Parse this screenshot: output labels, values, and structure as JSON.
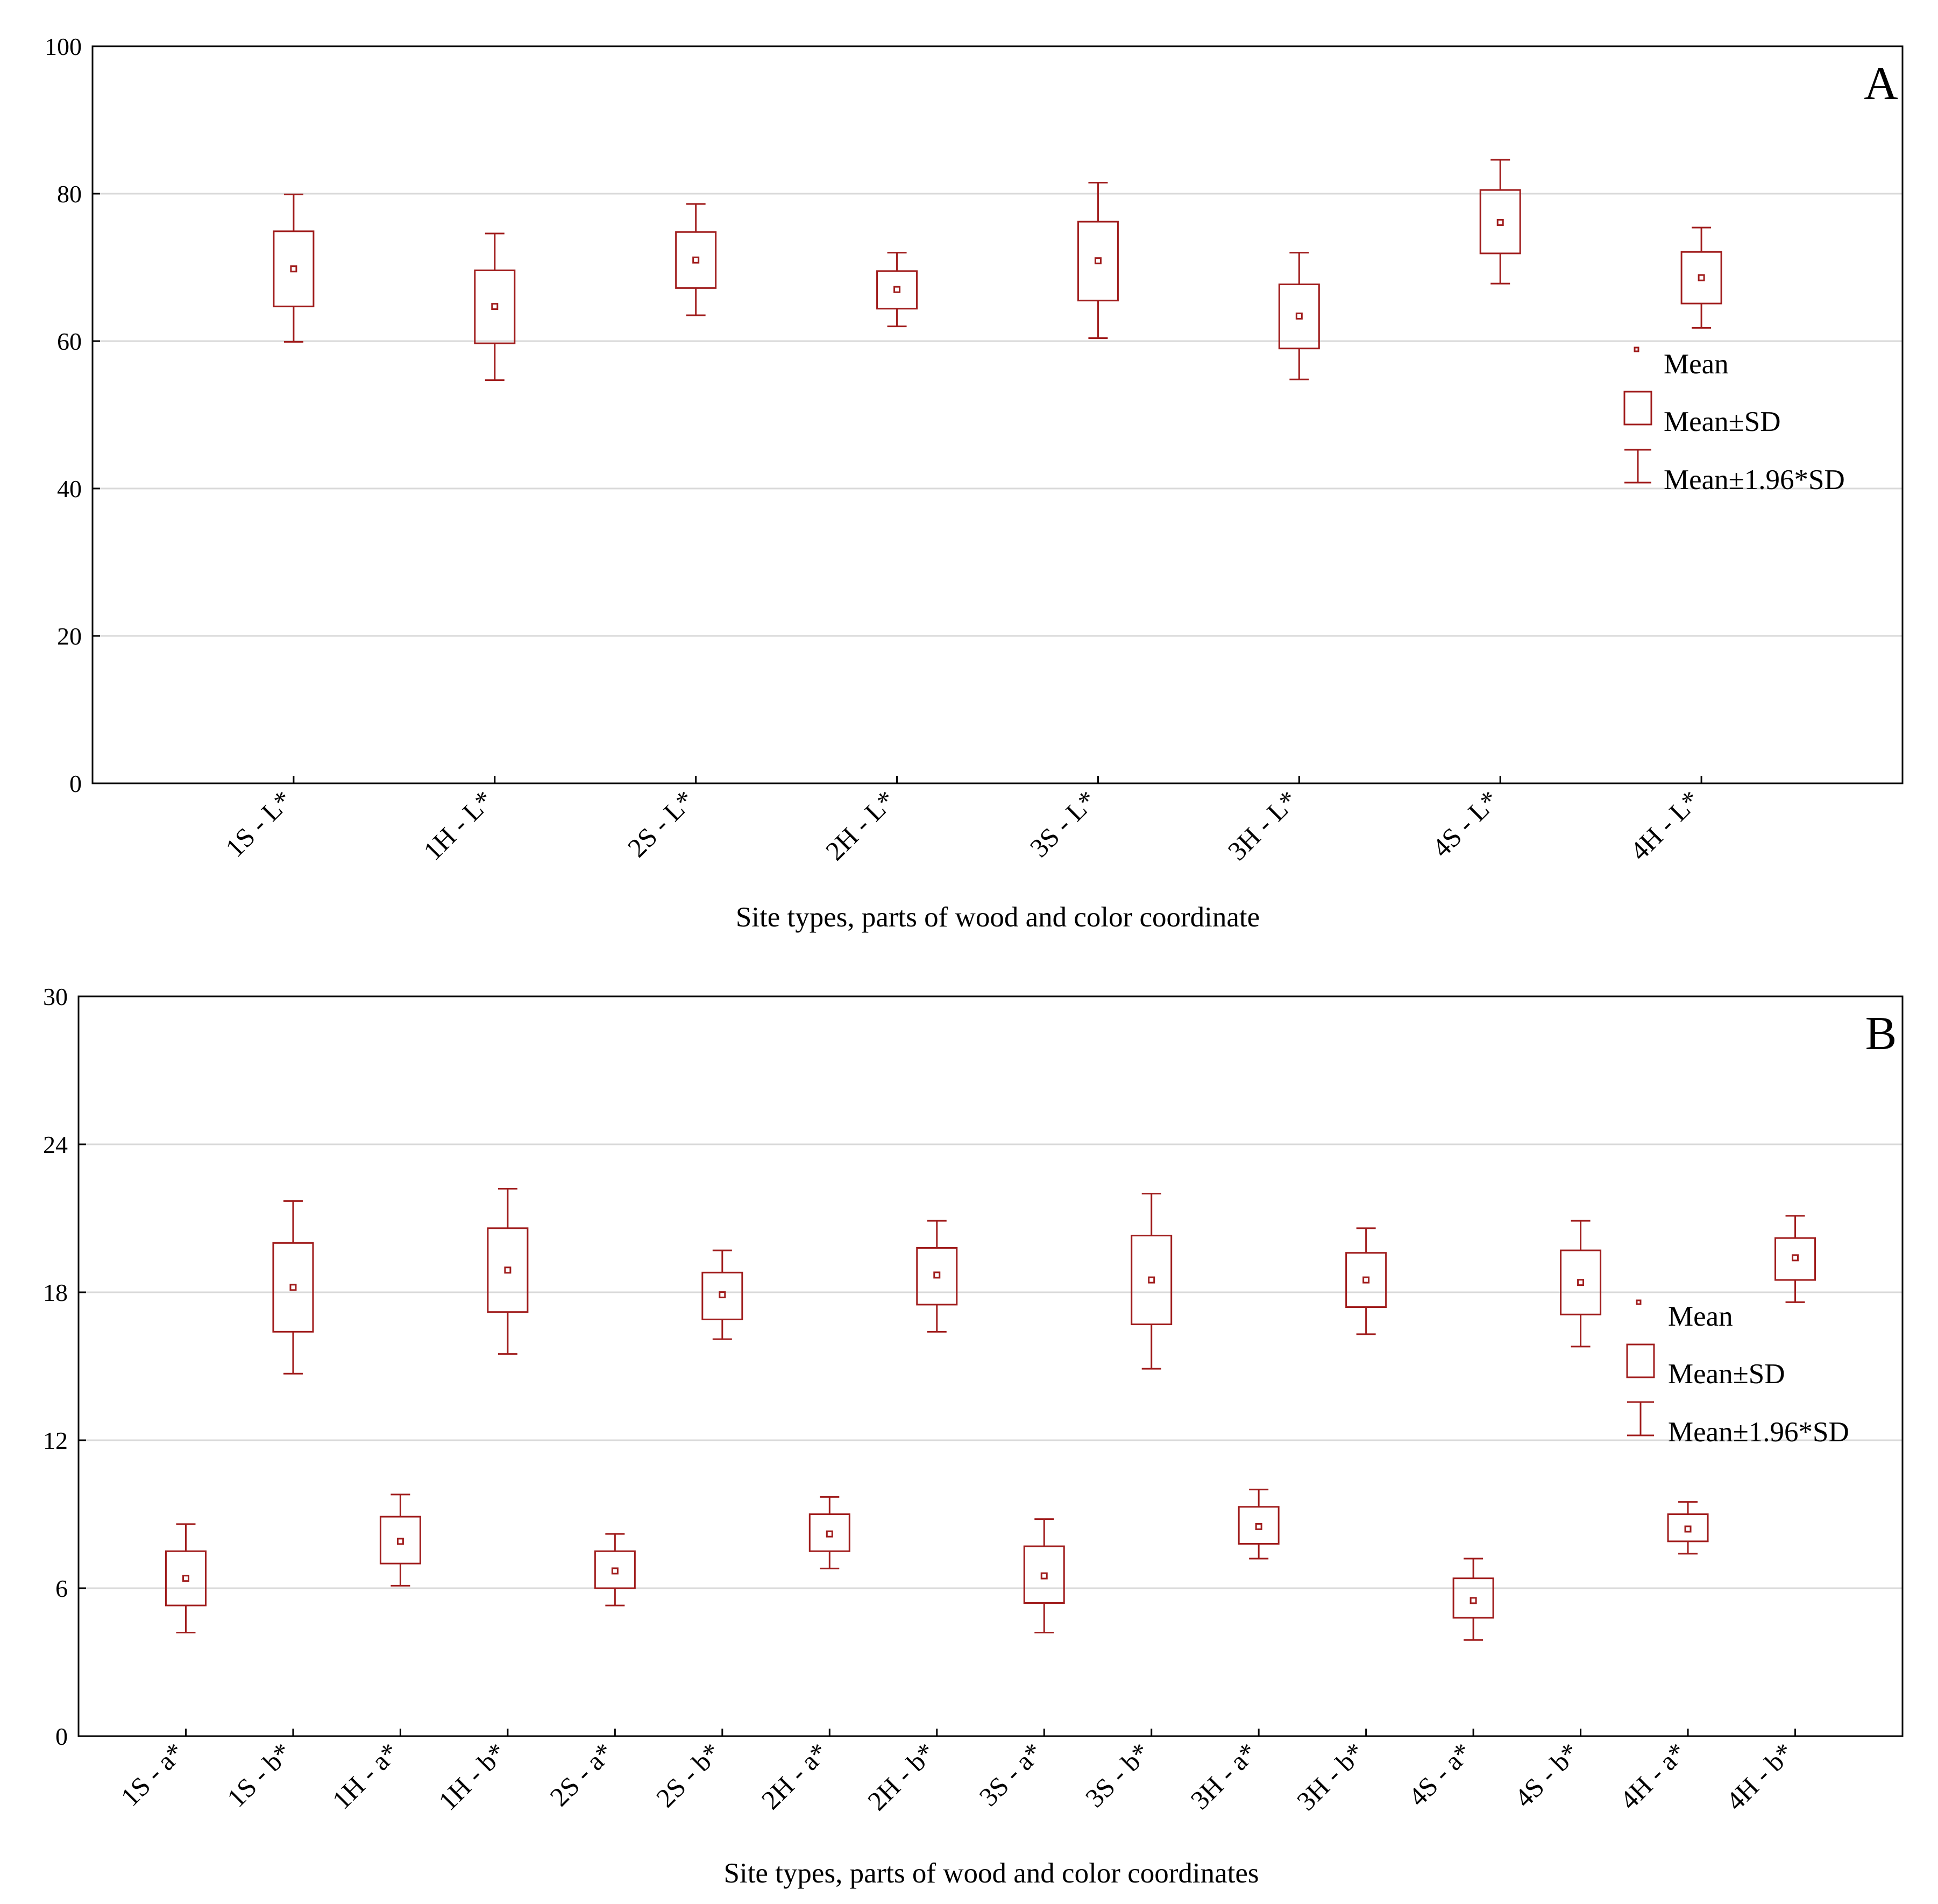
{
  "style": {
    "series_color": "#a01c1c",
    "grid_color": "#d9d9d9",
    "axis_color": "#000000"
  },
  "chart_data": [
    {
      "type": "box",
      "panel_label": "A",
      "xlabel": "Site types, parts of wood and color coordinate",
      "ylabel": "",
      "ylim": [
        0,
        100
      ],
      "yticks": [
        0,
        20,
        40,
        60,
        80,
        100
      ],
      "grid": true,
      "legend_position": "right",
      "legend": {
        "mean": "Mean",
        "sd": "Mean±SD",
        "ci": "Mean±1.96*SD"
      },
      "categories": [
        "1S - L*",
        "1H - L*",
        "2S - L*",
        "2H - L*",
        "3S - L*",
        "3H - L*",
        "4S - L*",
        "4H - L*"
      ],
      "mean": [
        69.8,
        64.7,
        71.0,
        67.0,
        70.9,
        63.4,
        76.1,
        68.6
      ],
      "sd_low": [
        64.7,
        59.7,
        67.2,
        64.4,
        65.5,
        59.0,
        71.9,
        65.1
      ],
      "sd_high": [
        74.9,
        69.6,
        74.8,
        69.5,
        76.2,
        67.7,
        80.5,
        72.1
      ],
      "whisker_low": [
        59.9,
        54.7,
        63.5,
        62.0,
        60.4,
        54.8,
        67.8,
        61.8
      ],
      "whisker_high": [
        79.9,
        74.6,
        78.6,
        72.0,
        81.5,
        72.0,
        84.6,
        75.4
      ]
    },
    {
      "type": "box",
      "panel_label": "B",
      "xlabel": "Site types, parts of wood and color coordinates",
      "ylabel": "",
      "ylim": [
        0,
        30
      ],
      "yticks": [
        0,
        6,
        12,
        18,
        24,
        30
      ],
      "grid": true,
      "legend_position": "right",
      "legend": {
        "mean": "Mean",
        "sd": "Mean±SD",
        "ci": "Mean±1.96*SD"
      },
      "categories": [
        "1S - a*",
        "1S - b*",
        "1H - a*",
        "1H - b*",
        "2S - a*",
        "2S - b*",
        "2H - a*",
        "2H - b*",
        "3S - a*",
        "3S - b*",
        "3H - a*",
        "3H - b*",
        "4S - a*",
        "4S - b*",
        "4H - a*",
        "4H - b*"
      ],
      "mean": [
        6.4,
        18.2,
        7.9,
        18.9,
        6.7,
        17.9,
        8.2,
        18.7,
        6.5,
        18.5,
        8.5,
        18.5,
        5.5,
        18.4,
        8.4,
        19.4
      ],
      "sd_low": [
        5.3,
        16.4,
        7.0,
        17.2,
        6.0,
        16.9,
        7.5,
        17.5,
        5.4,
        16.7,
        7.8,
        17.4,
        4.8,
        17.1,
        7.9,
        18.5
      ],
      "sd_high": [
        7.5,
        20.0,
        8.9,
        20.6,
        7.5,
        18.8,
        9.0,
        19.8,
        7.7,
        20.3,
        9.3,
        19.6,
        6.4,
        19.7,
        9.0,
        20.2
      ],
      "whisker_low": [
        4.2,
        14.7,
        6.1,
        15.5,
        5.3,
        16.1,
        6.8,
        16.4,
        4.2,
        14.9,
        7.2,
        16.3,
        3.9,
        15.8,
        7.4,
        17.6
      ],
      "whisker_high": [
        8.6,
        21.7,
        9.8,
        22.2,
        8.2,
        19.7,
        9.7,
        20.9,
        8.8,
        22.0,
        10.0,
        20.6,
        7.2,
        20.9,
        9.5,
        21.1
      ]
    }
  ]
}
